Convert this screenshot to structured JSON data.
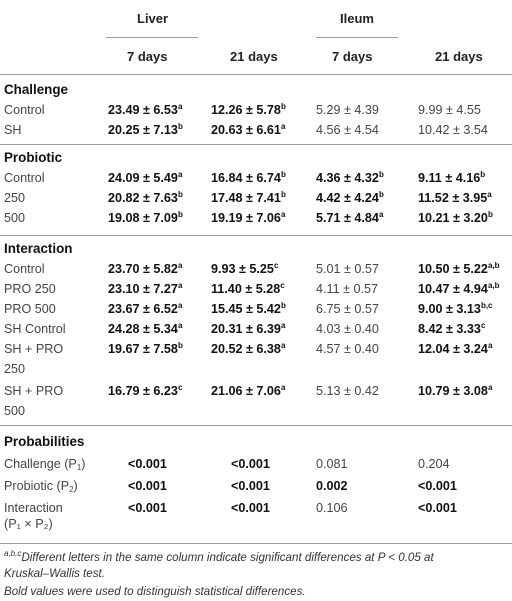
{
  "header": {
    "liver": "Liver",
    "ileum": "Ileum",
    "days": [
      "7 days",
      "21 days",
      "7 days",
      "21 days"
    ]
  },
  "sections": [
    {
      "title": "Challenge",
      "rows": [
        {
          "label": "Control",
          "cells": [
            {
              "v": "23.49 ± 6.53",
              "s": "a",
              "b": true
            },
            {
              "v": "12.26 ± 5.78",
              "s": "b",
              "b": true
            },
            {
              "v": "5.29 ± 4.39",
              "s": "",
              "b": false
            },
            {
              "v": "9.99 ± 4.55",
              "s": "",
              "b": false
            }
          ]
        },
        {
          "label": "SH",
          "cells": [
            {
              "v": "20.25 ± 7.13",
              "s": "b",
              "b": true
            },
            {
              "v": "20.63 ± 6.61",
              "s": "a",
              "b": true
            },
            {
              "v": "4.56 ± 4.54",
              "s": "",
              "b": false
            },
            {
              "v": "10.42 ± 3.54",
              "s": "",
              "b": false
            }
          ]
        }
      ]
    },
    {
      "title": "Probiotic",
      "rows": [
        {
          "label": "Control",
          "cells": [
            {
              "v": "24.09 ± 5.49",
              "s": "a",
              "b": true
            },
            {
              "v": "16.84 ± 6.74",
              "s": "b",
              "b": true
            },
            {
              "v": "4.36 ± 4.32",
              "s": "b",
              "b": true
            },
            {
              "v": "9.11 ± 4.16",
              "s": "b",
              "b": true
            }
          ]
        },
        {
          "label": "250",
          "cells": [
            {
              "v": "20.82 ± 7.63",
              "s": "b",
              "b": true
            },
            {
              "v": "17.48 ± 7.41",
              "s": "b",
              "b": true
            },
            {
              "v": "4.42 ± 4.24",
              "s": "b",
              "b": true
            },
            {
              "v": "11.52 ± 3.95",
              "s": "a",
              "b": true
            }
          ]
        },
        {
          "label": "500",
          "cells": [
            {
              "v": "19.08 ± 7.09",
              "s": "b",
              "b": true
            },
            {
              "v": "19.19 ± 7.06",
              "s": "a",
              "b": true
            },
            {
              "v": "5.71 ± 4.84",
              "s": "a",
              "b": true
            },
            {
              "v": "10.21 ± 3.20",
              "s": "b",
              "b": true
            }
          ]
        }
      ]
    },
    {
      "title": "Interaction",
      "rows": [
        {
          "label": "Control",
          "cells": [
            {
              "v": "23.70 ± 5.82",
              "s": "a",
              "b": true
            },
            {
              "v": "9.93 ± 5.25",
              "s": "c",
              "b": true
            },
            {
              "v": "5.01 ± 0.57",
              "s": "",
              "b": false
            },
            {
              "v": "10.50 ± 5.22",
              "s": "a,b",
              "b": true
            }
          ]
        },
        {
          "label": "PRO 250",
          "cells": [
            {
              "v": "23.10 ± 7.27",
              "s": "a",
              "b": true
            },
            {
              "v": "11.40 ± 5.28",
              "s": "c",
              "b": true
            },
            {
              "v": "4.11 ± 0.57",
              "s": "",
              "b": false
            },
            {
              "v": "10.47 ± 4.94",
              "s": "a,b",
              "b": true
            }
          ]
        },
        {
          "label": "PRO 500",
          "cells": [
            {
              "v": "23.67 ± 6.52",
              "s": "a",
              "b": true
            },
            {
              "v": "15.45 ± 5.42",
              "s": "b",
              "b": true
            },
            {
              "v": "6.75 ± 0.57",
              "s": "",
              "b": false
            },
            {
              "v": "9.00 ± 3.13",
              "s": "b,c",
              "b": true
            }
          ]
        },
        {
          "label": "SH Control",
          "cells": [
            {
              "v": "24.28 ± 5.34",
              "s": "a",
              "b": true
            },
            {
              "v": "20.31 ± 6.39",
              "s": "a",
              "b": true
            },
            {
              "v": "4.03 ± 0.40",
              "s": "",
              "b": false
            },
            {
              "v": "8.42 ± 3.33",
              "s": "c",
              "b": true
            }
          ]
        },
        {
          "label": "SH + PRO",
          "label2": "250",
          "cells": [
            {
              "v": "19.67 ± 7.58",
              "s": "b",
              "b": true
            },
            {
              "v": "20.52 ± 6.38",
              "s": "a",
              "b": true
            },
            {
              "v": "4.57 ± 0.40",
              "s": "",
              "b": false
            },
            {
              "v": "12.04 ± 3.24",
              "s": "a",
              "b": true
            }
          ]
        },
        {
          "label": "SH + PRO",
          "label2": "500",
          "cells": [
            {
              "v": "16.79 ± 6.23",
              "s": "c",
              "b": true
            },
            {
              "v": "21.06 ± 7.06",
              "s": "a",
              "b": true
            },
            {
              "v": "5.13 ± 0.42",
              "s": "",
              "b": false
            },
            {
              "v": "10.79 ± 3.08",
              "s": "a",
              "b": true
            }
          ]
        }
      ]
    }
  ],
  "probabilities": {
    "title": "Probabilities",
    "rows": [
      {
        "label": "Challenge (P",
        "label_sub": "1",
        "label_end": ")",
        "cells": [
          {
            "v": "<0.001",
            "b": true
          },
          {
            "v": "<0.001",
            "b": true
          },
          {
            "v": "0.081",
            "b": false
          },
          {
            "v": "0.204",
            "b": false
          }
        ]
      },
      {
        "label": "Probiotic (P",
        "label_sub": "2",
        "label_end": ")",
        "cells": [
          {
            "v": "<0.001",
            "b": true
          },
          {
            "v": "<0.001",
            "b": true
          },
          {
            "v": "0.002",
            "b": true
          },
          {
            "v": "<0.001",
            "b": true
          }
        ]
      },
      {
        "label": "Interaction",
        "label2": "(P₁ × P₂)",
        "cells": [
          {
            "v": "<0.001",
            "b": true
          },
          {
            "v": "<0.001",
            "b": true
          },
          {
            "v": "0.106",
            "b": false
          },
          {
            "v": "<0.001",
            "b": true
          }
        ]
      }
    ]
  },
  "footnotes": {
    "sup": "a,b,c",
    "line1": "Different letters in the same column indicate significant differences at P < 0.05 at",
    "line2": "Kruskal–Wallis test.",
    "line3": "Bold values were used to distinguish statistical differences."
  }
}
